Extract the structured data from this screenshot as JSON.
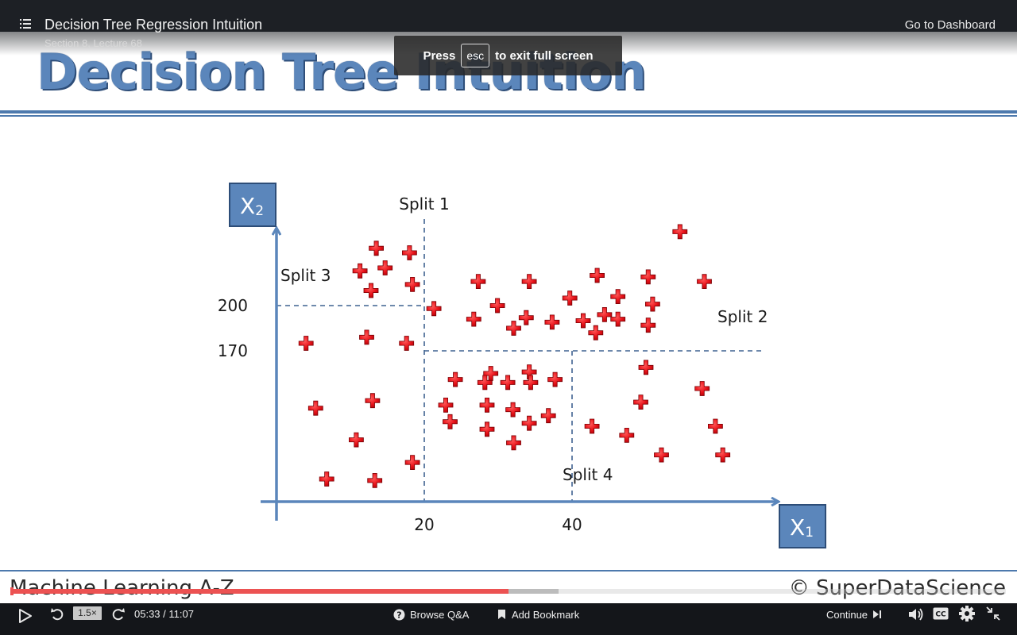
{
  "header": {
    "lecture_title": "Decision Tree Regression Intuition",
    "section_label": "Section 8, Lecture 68",
    "dashboard_link": "Go to Dashboard"
  },
  "toast": {
    "prefix": "Press",
    "key": "esc",
    "suffix": "to exit full screen"
  },
  "slide": {
    "title": "Decision Tree Intuition",
    "footer_left": "Machine Learning A-Z",
    "footer_right": "© SuperDataScience"
  },
  "chart_data": {
    "type": "scatter",
    "x_axis_label": "X",
    "x_axis_subscript": "1",
    "y_axis_label": "X",
    "y_axis_subscript": "2",
    "x_ticks": [
      {
        "value": 20,
        "label": "20"
      },
      {
        "value": 40,
        "label": "40"
      }
    ],
    "y_ticks": [
      {
        "value": 200,
        "label": "200"
      },
      {
        "value": 170,
        "label": "170"
      }
    ],
    "splits": [
      {
        "name": "Split 1",
        "orientation": "vertical",
        "at_x": 20,
        "y_range": [
          null,
          null
        ]
      },
      {
        "name": "Split 2",
        "orientation": "horizontal",
        "at_y": 170,
        "x_range": [
          20,
          null
        ]
      },
      {
        "name": "Split 3",
        "orientation": "horizontal",
        "at_y": 200,
        "x_range": [
          null,
          20
        ]
      },
      {
        "name": "Split 4",
        "orientation": "vertical",
        "at_x": 40,
        "y_range": [
          null,
          170
        ]
      }
    ],
    "points": [
      {
        "x": 13.5,
        "y": 238
      },
      {
        "x": 18,
        "y": 235
      },
      {
        "x": 11.3,
        "y": 223
      },
      {
        "x": 14.7,
        "y": 225
      },
      {
        "x": 18.4,
        "y": 214
      },
      {
        "x": 12.8,
        "y": 210
      },
      {
        "x": 21.3,
        "y": 198
      },
      {
        "x": 27.3,
        "y": 216
      },
      {
        "x": 34.2,
        "y": 216
      },
      {
        "x": 43.4,
        "y": 220
      },
      {
        "x": 50.3,
        "y": 219
      },
      {
        "x": 57.9,
        "y": 216
      },
      {
        "x": 54.6,
        "y": 249
      },
      {
        "x": 29.9,
        "y": 200
      },
      {
        "x": 39.7,
        "y": 205
      },
      {
        "x": 46.2,
        "y": 206
      },
      {
        "x": 50.9,
        "y": 201
      },
      {
        "x": 26.7,
        "y": 191
      },
      {
        "x": 33.8,
        "y": 192
      },
      {
        "x": 32.1,
        "y": 185
      },
      {
        "x": 37.3,
        "y": 189
      },
      {
        "x": 41.5,
        "y": 190
      },
      {
        "x": 44.4,
        "y": 194
      },
      {
        "x": 46.2,
        "y": 191
      },
      {
        "x": 43.2,
        "y": 182
      },
      {
        "x": 50.3,
        "y": 187
      },
      {
        "x": 12.2,
        "y": 179
      },
      {
        "x": 17.6,
        "y": 175
      },
      {
        "x": 4.0,
        "y": 175
      },
      {
        "x": 50.0,
        "y": 159
      },
      {
        "x": 29.0,
        "y": 155
      },
      {
        "x": 34.2,
        "y": 156
      },
      {
        "x": 24.2,
        "y": 151
      },
      {
        "x": 28.2,
        "y": 149
      },
      {
        "x": 31.3,
        "y": 149
      },
      {
        "x": 34.4,
        "y": 149
      },
      {
        "x": 37.7,
        "y": 151
      },
      {
        "x": 57.6,
        "y": 145
      },
      {
        "x": 13.0,
        "y": 137
      },
      {
        "x": 5.3,
        "y": 132
      },
      {
        "x": 22.9,
        "y": 134
      },
      {
        "x": 28.5,
        "y": 134
      },
      {
        "x": 32.0,
        "y": 131
      },
      {
        "x": 36.8,
        "y": 127
      },
      {
        "x": 49.3,
        "y": 136
      },
      {
        "x": 23.5,
        "y": 123
      },
      {
        "x": 34.2,
        "y": 122
      },
      {
        "x": 28.5,
        "y": 118
      },
      {
        "x": 42.7,
        "y": 120
      },
      {
        "x": 47.4,
        "y": 114
      },
      {
        "x": 59.4,
        "y": 120
      },
      {
        "x": 10.8,
        "y": 111
      },
      {
        "x": 32.1,
        "y": 109
      },
      {
        "x": 18.4,
        "y": 96
      },
      {
        "x": 52.1,
        "y": 101
      },
      {
        "x": 60.4,
        "y": 101
      },
      {
        "x": 6.8,
        "y": 85
      },
      {
        "x": 13.3,
        "y": 84
      }
    ],
    "x_range": [
      0,
      70
    ],
    "y_range": [
      70,
      260
    ],
    "marker_color": "#e8141b",
    "axis_color": "#5b86bb",
    "split_color": "#3f6290"
  },
  "player": {
    "rate": "1.5×",
    "current_time": "05:33",
    "duration": "11:07",
    "time_separator": " / ",
    "progress_fraction": 0.5,
    "buffered_fraction": 0.55,
    "browse_qa": "Browse Q&A",
    "add_bookmark": "Add Bookmark",
    "continue": "Continue",
    "accent_color": "#ec5252"
  }
}
